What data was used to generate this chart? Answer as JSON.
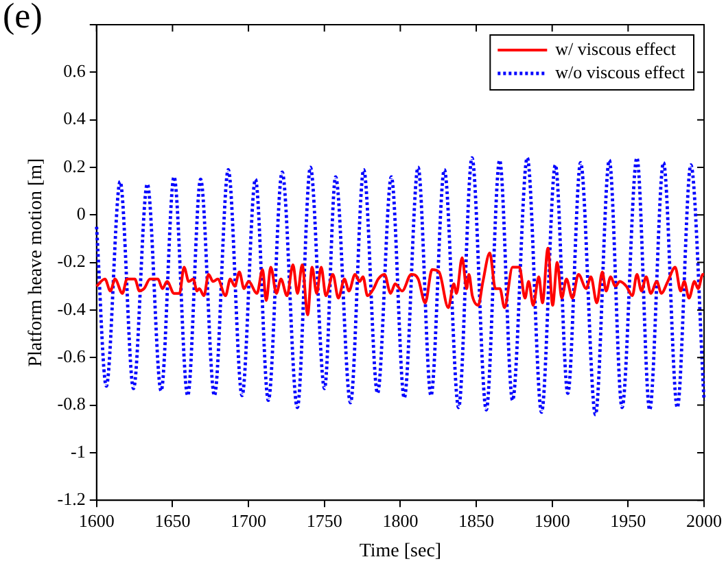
{
  "chart_data": {
    "type": "line",
    "title": "(e)",
    "xlabel": "Time [sec]",
    "ylabel": "Platform heave motion [m]",
    "xlim": [
      1600,
      2000
    ],
    "xticks": [
      1600,
      1650,
      1700,
      1750,
      1800,
      1850,
      1900,
      1950,
      2000
    ],
    "ylim": [
      -1.2,
      0.8
    ],
    "yticks": [
      -1.2,
      -1,
      -0.8,
      -0.6,
      -0.4,
      -0.2,
      0,
      0.2,
      0.4,
      0.6,
      {
        "value": 0.8,
        "label": null
      }
    ],
    "grid": false,
    "legend": "top right",
    "marker": "none",
    "series": [
      {
        "name": "w/ viscous effect",
        "color": "#ff0000",
        "line_style": "solid",
        "x": [
          1600,
          1605.5,
          1609.1,
          1612.1,
          1617,
          1620,
          1625.2,
          1628.2,
          1631.3,
          1635.2,
          1640.4,
          1643.4,
          1646.4,
          1651,
          1654.6,
          1657.6,
          1660.7,
          1663.7,
          1666.1,
          1667.6,
          1670.7,
          1673.7,
          1676.7,
          1679.8,
          1684.9,
          1688,
          1691,
          1694,
          1697.1,
          1700.1,
          1705.6,
          1709.3,
          1711.7,
          1714.7,
          1718.4,
          1721.4,
          1725.4,
          1729.3,
          1732.3,
          1735.4,
          1739,
          1741.9,
          1744.9,
          1747.9,
          1751,
          1755.6,
          1759.2,
          1763.2,
          1766.2,
          1770.2,
          1773.2,
          1775.4,
          1778.4,
          1782.4,
          1785.4,
          1789.6,
          1793.6,
          1796.6,
          1801.2,
          1807.2,
          1811.8,
          1816.4,
          1820.9,
          1825.5,
          1831.6,
          1835.2,
          1837,
          1840.7,
          1843.7,
          1845.2,
          1847.4,
          1851.3,
          1854.4,
          1858.9,
          1862.6,
          1865.6,
          1868.6,
          1873.9,
          1878.4,
          1882.1,
          1884.5,
          1887.5,
          1891.2,
          1893.6,
          1897.2,
          1900.3,
          1903.3,
          1906.3,
          1909.4,
          1913.3,
          1917.3,
          1922.4,
          1925.5,
          1929.4,
          1933,
          1935.5,
          1938.5,
          1941.5,
          1944.6,
          1948.8,
          1952.8,
          1955.8,
          1958.8,
          1961.9,
          1964.9,
          1968.9,
          1971.9,
          1976.1,
          1981,
          1984.6,
          1987,
          1990.1,
          1993.7,
          1996.1,
          1999.2,
          2000
        ],
        "values": [
          -0.3,
          -0.27,
          -0.32,
          -0.27,
          -0.33,
          -0.27,
          -0.27,
          -0.32,
          -0.31,
          -0.27,
          -0.27,
          -0.31,
          -0.28,
          -0.33,
          -0.33,
          -0.22,
          -0.28,
          -0.27,
          -0.32,
          -0.31,
          -0.34,
          -0.25,
          -0.28,
          -0.27,
          -0.34,
          -0.27,
          -0.3,
          -0.24,
          -0.31,
          -0.28,
          -0.33,
          -0.23,
          -0.36,
          -0.22,
          -0.33,
          -0.27,
          -0.34,
          -0.21,
          -0.33,
          -0.21,
          -0.42,
          -0.22,
          -0.33,
          -0.22,
          -0.34,
          -0.25,
          -0.35,
          -0.27,
          -0.32,
          -0.25,
          -0.28,
          -0.26,
          -0.34,
          -0.31,
          -0.27,
          -0.25,
          -0.33,
          -0.29,
          -0.32,
          -0.25,
          -0.27,
          -0.37,
          -0.23,
          -0.24,
          -0.39,
          -0.29,
          -0.33,
          -0.18,
          -0.31,
          -0.25,
          -0.34,
          -0.38,
          -0.28,
          -0.16,
          -0.31,
          -0.31,
          -0.39,
          -0.22,
          -0.22,
          -0.35,
          -0.28,
          -0.38,
          -0.26,
          -0.37,
          -0.14,
          -0.38,
          -0.2,
          -0.35,
          -0.27,
          -0.35,
          -0.25,
          -0.31,
          -0.26,
          -0.37,
          -0.24,
          -0.32,
          -0.26,
          -0.3,
          -0.28,
          -0.3,
          -0.34,
          -0.25,
          -0.32,
          -0.26,
          -0.33,
          -0.28,
          -0.33,
          -0.28,
          -0.22,
          -0.32,
          -0.28,
          -0.35,
          -0.28,
          -0.31,
          -0.25,
          -0.25
        ]
      },
      {
        "name": "w/o viscous effect",
        "color": "#0000ff",
        "line_style": "dotted",
        "x": [
          1600,
          1606.4,
          1615.5,
          1624.3,
          1633.4,
          1642.5,
          1651,
          1660,
          1668.5,
          1677.6,
          1686.7,
          1695.8,
          1704.6,
          1713.1,
          1722.2,
          1732.2,
          1740.8,
          1750.1,
          1757.4,
          1767.2,
          1775.9,
          1785,
          1794.1,
          1802.6,
          1811.7,
          1820.2,
          1829,
          1838.4,
          1847.2,
          1856.6,
          1865.4,
          1873.9,
          1883.6,
          1893,
          1902.1,
          1910.3,
          1918.7,
          1928.5,
          1937.6,
          1946,
          1955.8,
          1964.2,
          1973.3,
          1982.4,
          1991.3,
          2000
        ],
        "values": [
          -0.05,
          -0.72,
          0.14,
          -0.73,
          0.13,
          -0.74,
          0.16,
          -0.76,
          0.15,
          -0.76,
          0.19,
          -0.76,
          0.15,
          -0.78,
          0.18,
          -0.81,
          0.2,
          -0.73,
          0.16,
          -0.79,
          0.19,
          -0.75,
          0.16,
          -0.77,
          0.2,
          -0.76,
          0.19,
          -0.81,
          0.24,
          -0.82,
          0.23,
          -0.78,
          0.24,
          -0.83,
          0.21,
          -0.75,
          0.22,
          -0.84,
          0.23,
          -0.81,
          0.24,
          -0.82,
          0.22,
          -0.81,
          0.21,
          -0.78
        ]
      }
    ]
  }
}
